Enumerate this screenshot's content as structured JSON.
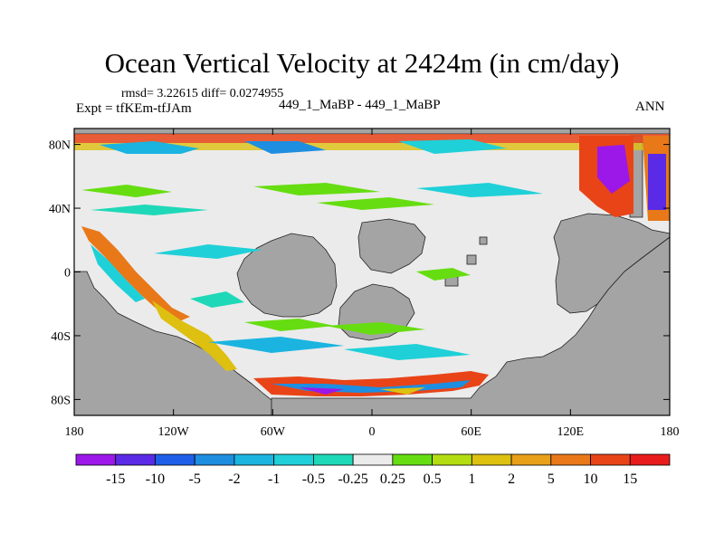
{
  "figure": {
    "title": "Ocean Vertical Velocity at 2424m (in cm/day)",
    "stats_line": "rmsd= 3.22615  diff= 0.0274955",
    "left_label": "Expt = tfKEm-tfJAm",
    "center_label": "449_1_MaBP - 449_1_MaBP",
    "right_label": "ANN"
  },
  "chart_data": {
    "type": "map",
    "x_tick_labels": [
      "180",
      "120W",
      "60W",
      "0",
      "60E",
      "120E",
      "180"
    ],
    "x_tick_lons": [
      -180,
      -120,
      -60,
      0,
      60,
      120,
      180
    ],
    "y_tick_labels": [
      "80N",
      "40N",
      "0",
      "40S",
      "80S"
    ],
    "y_tick_lats": [
      80,
      40,
      0,
      -40,
      -80
    ],
    "xlim": [
      -180,
      180
    ],
    "ylim": [
      -90,
      90
    ],
    "colorbar_levels": [
      "-15",
      "-10",
      "-5",
      "-2",
      "-1",
      "-0.5",
      "-0.25",
      "0.25",
      "0.5",
      "1",
      "2",
      "5",
      "10",
      "15"
    ],
    "colorbar_colors": [
      "#9b18e8",
      "#5a2ae6",
      "#1f5ee8",
      "#1e8ee0",
      "#1bb4e0",
      "#1fd0d8",
      "#1fd8b8",
      "#ebebeb",
      "#66dd10",
      "#b3dd10",
      "#ddc010",
      "#e8a018",
      "#e87818",
      "#e84418",
      "#e81c1c"
    ],
    "land_color": "#a4a4a4",
    "ocean_neutral_color": "#ebebeb"
  }
}
